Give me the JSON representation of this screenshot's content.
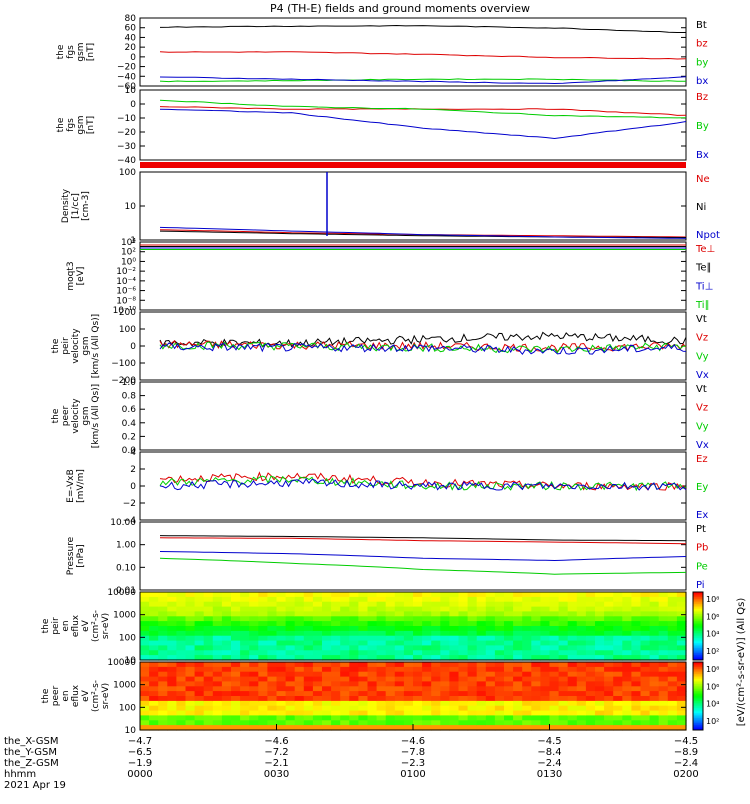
{
  "title": "P4 (TH-E) fields and ground moments overview",
  "panels": [
    {
      "id": "fgs_gsm",
      "ylabel": [
        "the",
        "fgs",
        "gsm",
        "[nT]"
      ],
      "yticks": [
        "80",
        "60",
        "40",
        "20",
        "0",
        "−20",
        "−40",
        "−60"
      ],
      "legend": [
        {
          "text": "Bt",
          "color": "#000000"
        },
        {
          "text": "bz",
          "color": "#dd0000"
        },
        {
          "text": "by",
          "color": "#00cc00"
        },
        {
          "text": "bx",
          "color": "#0000cc"
        }
      ]
    },
    {
      "id": "fgs_dsl",
      "ylabel": [
        "the",
        "fgs",
        "gsm",
        "[nT]"
      ],
      "yticks": [
        "10",
        "0",
        "−10",
        "−20",
        "−30",
        "−40"
      ],
      "legend": [
        {
          "text": "Bz",
          "color": "#dd0000"
        },
        {
          "text": "By",
          "color": "#00cc00"
        },
        {
          "text": "Bx",
          "color": "#0000cc"
        }
      ]
    },
    {
      "id": "density",
      "ylabel": [
        "Density",
        "[1/cc]",
        "[cm-3]"
      ],
      "yticks": [
        "100",
        "10",
        "1"
      ],
      "legend": [
        {
          "text": "Ne",
          "color": "#dd0000"
        },
        {
          "text": "Ni",
          "color": "#000000"
        },
        {
          "text": "Npot",
          "color": "#0000cc"
        }
      ]
    },
    {
      "id": "temp",
      "ylabel": [
        "moqt3",
        "[eV]"
      ],
      "yticks": [
        "10⁴",
        "10²",
        "10⁰",
        "10⁻²",
        "10⁻⁴",
        "10⁻⁶",
        "10⁻⁸",
        "10⁻¹⁰"
      ],
      "legend": [
        {
          "text": "Te⊥",
          "color": "#dd0000"
        },
        {
          "text": "Te∥",
          "color": "#000000"
        },
        {
          "text": "Ti⊥",
          "color": "#0000cc"
        },
        {
          "text": "Ti∥",
          "color": "#00cc00"
        }
      ]
    },
    {
      "id": "peir_vel",
      "ylabel": [
        "the",
        "peir",
        "velocity",
        "gsm",
        "[km/s (All Qs)]"
      ],
      "yticks": [
        "200",
        "100",
        "0",
        "−100",
        "−200"
      ],
      "legend": [
        {
          "text": "Vt",
          "color": "#000000"
        },
        {
          "text": "Vz",
          "color": "#dd0000"
        },
        {
          "text": "Vy",
          "color": "#00cc00"
        },
        {
          "text": "Vx",
          "color": "#0000cc"
        }
      ]
    },
    {
      "id": "peer_vel",
      "ylabel": [
        "the",
        "peer",
        "velocity",
        "gsm",
        "[km/s (All Qs)]"
      ],
      "yticks": [
        "1.0",
        "0.8",
        "0.6",
        "0.4",
        "0.2",
        "0.0"
      ],
      "legend": [
        {
          "text": "Vt",
          "color": "#000000"
        },
        {
          "text": "Vz",
          "color": "#dd0000"
        },
        {
          "text": "Vy",
          "color": "#00cc00"
        },
        {
          "text": "Vx",
          "color": "#0000cc"
        }
      ]
    },
    {
      "id": "efield",
      "ylabel": [
        "E=-VxB",
        "[mV/m]"
      ],
      "yticks": [
        "4",
        "2",
        "0",
        "−2",
        "−4"
      ],
      "legend": [
        {
          "text": "Ez",
          "color": "#dd0000"
        },
        {
          "text": "Ey",
          "color": "#00cc00"
        },
        {
          "text": "Ex",
          "color": "#0000cc"
        }
      ]
    },
    {
      "id": "pressure",
      "ylabel": [
        "Pressure",
        "[nPa]"
      ],
      "yticks": [
        "10.00",
        "1.00",
        "0.10",
        "0.01"
      ],
      "legend": [
        {
          "text": "Pt",
          "color": "#000000"
        },
        {
          "text": "Pb",
          "color": "#dd0000"
        },
        {
          "text": "Pe",
          "color": "#00cc00"
        },
        {
          "text": "Pi",
          "color": "#0000cc"
        }
      ]
    },
    {
      "id": "peir_spec",
      "ylabel": [
        "the",
        "peir",
        "en",
        "eflux",
        "eV",
        "(cm²-s-",
        "sr-eV)"
      ],
      "yticks": [
        "10000",
        "1000",
        "100",
        "10"
      ],
      "legend": []
    },
    {
      "id": "peer_spec",
      "ylabel": [
        "the",
        "peer",
        "en",
        "eflux",
        "eV",
        "(cm²-s-",
        "sr-eV)"
      ],
      "yticks": [
        "10000",
        "1000",
        "100",
        "10"
      ],
      "legend": []
    }
  ],
  "colorbar": {
    "label": "[eV/(cm²-s-sr-eV)] (All Qs)",
    "ticks": [
      "10⁸",
      "10⁶",
      "10⁴",
      "10²"
    ]
  },
  "xaxis": {
    "rows": [
      {
        "label": "the_X-GSM",
        "values": [
          "−4.7",
          "−4.6",
          "−4.6",
          "−4.5",
          "−4.5"
        ]
      },
      {
        "label": "the_Y-GSM",
        "values": [
          "−6.5",
          "−7.2",
          "−7.8",
          "−8.4",
          "−8.9"
        ]
      },
      {
        "label": "the_Z-GSM",
        "values": [
          "−1.9",
          "−2.1",
          "−2.3",
          "−2.4",
          "−2.4"
        ]
      },
      {
        "label": "hhmm",
        "values": [
          "0000",
          "0030",
          "0100",
          "0130",
          "0200"
        ]
      }
    ],
    "date": "2021 Apr 19"
  },
  "chart_data": {
    "type": "line",
    "title": "P4 (TH-E) fields and ground moments overview",
    "x": [
      "0000",
      "0030",
      "0100",
      "0130",
      "0200"
    ],
    "xlabel": "hhmm",
    "date": "2021 Apr 19",
    "panels": [
      {
        "name": "fgs_gsm",
        "ylim": [
          -60,
          90
        ],
        "series": [
          {
            "name": "Bt",
            "values": [
              70,
              72,
              73,
              68,
              58
            ]
          },
          {
            "name": "bz",
            "values": [
              15,
              15,
              10,
              3,
              0
            ]
          },
          {
            "name": "by",
            "values": [
              -50,
              -48,
              -45,
              -45,
              -50
            ]
          },
          {
            "name": "bx",
            "values": [
              -40,
              -45,
              -50,
              -55,
              -40
            ]
          }
        ]
      },
      {
        "name": "fgs_dsl",
        "ylim": [
          -45,
          10
        ],
        "series": [
          {
            "name": "Bz",
            "values": [
              -3,
              -5,
              -5,
              -5,
              -10
            ]
          },
          {
            "name": "By",
            "values": [
              2,
              -3,
              -5,
              -10,
              -12
            ]
          },
          {
            "name": "Bx",
            "values": [
              -5,
              -8,
              -20,
              -28,
              -15
            ]
          }
        ]
      },
      {
        "name": "density",
        "scale": "log",
        "ylim": [
          0.3,
          200
        ],
        "series": [
          {
            "name": "Ne",
            "values": [
              0.8,
              0.6,
              0.5,
              0.45,
              0.4
            ]
          },
          {
            "name": "Ni",
            "values": [
              0.7,
              0.55,
              0.45,
              0.4,
              0.38
            ]
          },
          {
            "name": "Npot",
            "values": [
              1.0,
              0.7,
              0.5,
              0.4,
              0.35
            ]
          }
        ]
      },
      {
        "name": "velocity_peir",
        "ylim": [
          -200,
          200
        ],
        "series": [
          {
            "name": "Vt",
            "values": [
              20,
              15,
              40,
              60,
              30
            ]
          },
          {
            "name": "Vz",
            "values": [
              10,
              5,
              0,
              -10,
              0
            ]
          },
          {
            "name": "Vy",
            "values": [
              5,
              0,
              -10,
              -20,
              0
            ]
          },
          {
            "name": "Vx",
            "values": [
              -5,
              -10,
              -10,
              -30,
              -10
            ]
          }
        ]
      },
      {
        "name": "efield",
        "ylim": [
          -5,
          5
        ],
        "series": [
          {
            "name": "Ez",
            "values": [
              1,
              1.5,
              0.5,
              0,
              0
            ]
          },
          {
            "name": "Ey",
            "values": [
              0.5,
              1,
              0,
              0,
              0
            ]
          },
          {
            "name": "Ex",
            "values": [
              0,
              0.5,
              0,
              0,
              0
            ]
          }
        ]
      },
      {
        "name": "pressure",
        "scale": "log",
        "ylim": [
          0.01,
          10
        ],
        "series": [
          {
            "name": "Pt",
            "values": [
              2.5,
              2.3,
              2.0,
              1.6,
              1.5
            ]
          },
          {
            "name": "Pb",
            "values": [
              2.0,
              1.9,
              1.5,
              1.3,
              1.1
            ]
          },
          {
            "name": "Pe",
            "values": [
              0.25,
              0.15,
              0.08,
              0.05,
              0.06
            ]
          },
          {
            "name": "Pi",
            "values": [
              0.5,
              0.4,
              0.25,
              0.2,
              0.3
            ]
          }
        ]
      }
    ]
  }
}
